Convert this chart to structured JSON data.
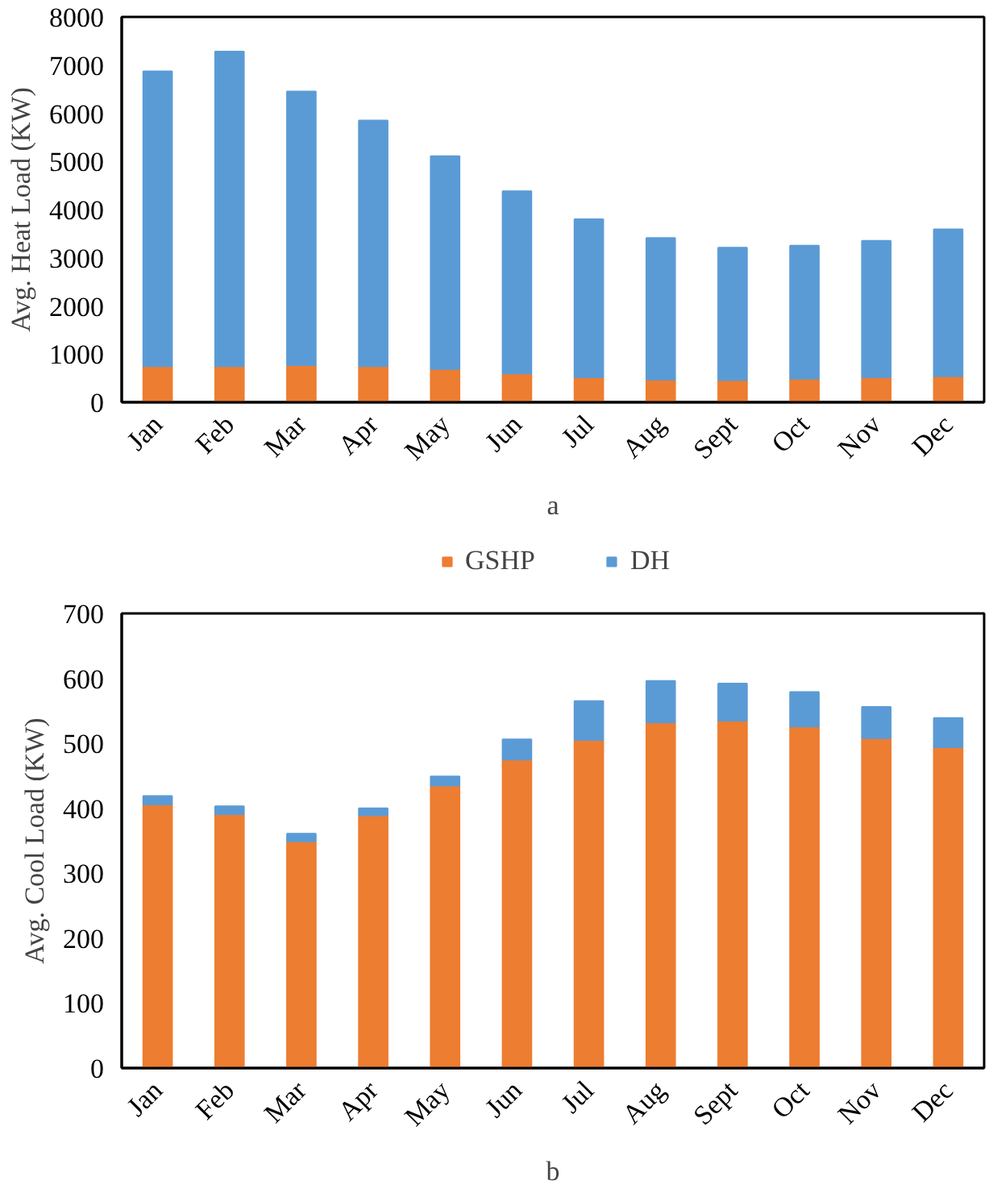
{
  "chart_data": [
    {
      "type": "bar",
      "stacked": true,
      "xlabel": "a",
      "ylabel": "Avg. Heat Load (KW)",
      "categories": [
        "Jan",
        "Feb",
        "Mar",
        "Apr",
        "May",
        "Jun",
        "Jul",
        "Aug",
        "Sept",
        "Oct",
        "Nov",
        "Dec"
      ],
      "ylim": [
        0,
        8000
      ],
      "yticks": [
        0,
        1000,
        2000,
        3000,
        4000,
        5000,
        6000,
        7000,
        8000
      ],
      "grid": false,
      "legend": "bottom",
      "series": [
        {
          "name": "GSHP",
          "color": "#ed7d31",
          "values": [
            750,
            750,
            770,
            750,
            690,
            600,
            520,
            470,
            460,
            490,
            520,
            540
          ]
        },
        {
          "name": "DH",
          "color": "#5b9bd5",
          "values": [
            6120,
            6530,
            5680,
            5100,
            4420,
            3780,
            3280,
            2940,
            2750,
            2760,
            2830,
            3050
          ]
        }
      ]
    },
    {
      "type": "bar",
      "stacked": true,
      "xlabel": "b",
      "ylabel": "Avg. Cool Load (KW)",
      "categories": [
        "Jan",
        "Feb",
        "Mar",
        "Apr",
        "May",
        "Jun",
        "Jul",
        "Aug",
        "Sept",
        "Oct",
        "Nov",
        "Dec"
      ],
      "ylim": [
        0,
        700
      ],
      "yticks": [
        0,
        100,
        200,
        300,
        400,
        500,
        600,
        700
      ],
      "grid": false,
      "legend": false,
      "series": [
        {
          "color": "#ed7d31",
          "values": [
            406,
            391,
            349,
            389,
            435,
            475,
            505,
            532,
            535,
            526,
            508,
            494
          ]
        },
        {
          "color": "#5b9bd5",
          "values": [
            13,
            12,
            12,
            11,
            14,
            31,
            60,
            64,
            57,
            53,
            48,
            45
          ]
        }
      ]
    }
  ]
}
